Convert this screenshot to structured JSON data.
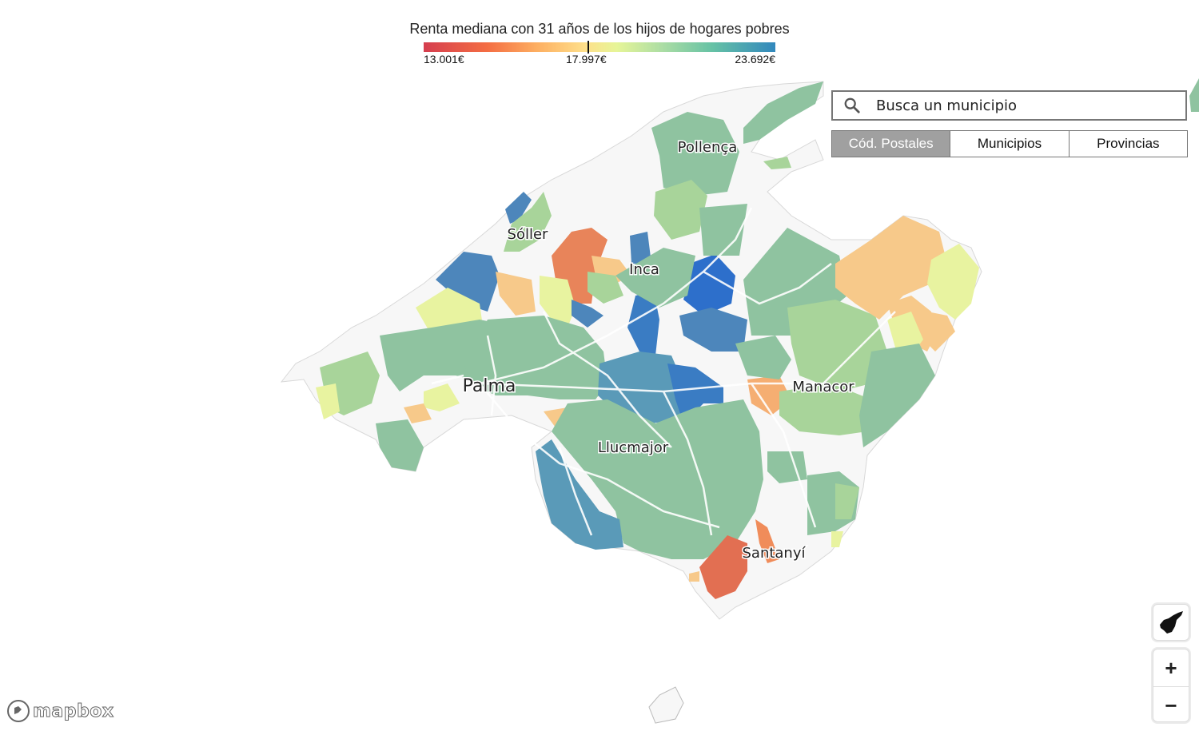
{
  "legend": {
    "title": "Renta mediana con 31 años de los hijos de hogares pobres",
    "min_label": "13.001€",
    "mid_label": "17.997€",
    "max_label": "23.692€",
    "colors": [
      "#d53e4f",
      "#f46d43",
      "#fdae61",
      "#fee08b",
      "#e6f598",
      "#abdda4",
      "#66c2a5",
      "#3288bd"
    ]
  },
  "search": {
    "placeholder": "Busca un municipio"
  },
  "tabs": [
    {
      "label": "Cód. Postales",
      "active": true
    },
    {
      "label": "Municipios",
      "active": false
    },
    {
      "label": "Provincias",
      "active": false
    }
  ],
  "map_labels": {
    "pollenca": "Pollença",
    "soller": "Sóller",
    "inca": "Inca",
    "palma": "Palma",
    "manacor": "Manacor",
    "llucmajor": "Llucmajor",
    "santanyi": "Santanyí"
  },
  "controls": {
    "zoom_in": "+",
    "zoom_out": "−",
    "island_icon": "island-shape-icon"
  },
  "attribution": {
    "logo_text": "mapbox"
  },
  "palette": {
    "no_data": "#f7f7f7",
    "teal_green": "#8fc3a0",
    "light_green": "#a8d49a",
    "pale_yellow": "#e8f3a0",
    "orange": "#f5a36b",
    "red_orange": "#e26f52",
    "light_orange": "#f7c98a",
    "steel_blue": "#5a9ab8",
    "strong_blue": "#2d6fcb"
  }
}
